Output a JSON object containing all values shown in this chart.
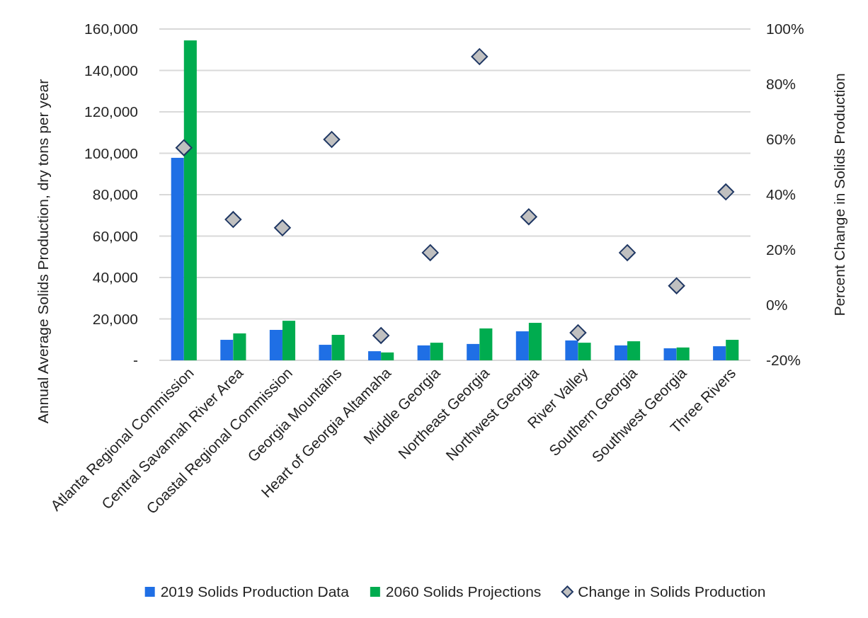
{
  "chart_data": {
    "type": "bar",
    "ylabel": "Annual Average Solids Production, dry tons per year",
    "y2label": "Percent Change in Solids Production",
    "categories": [
      "Atlanta Regional Commission",
      "Central Savannah River Area",
      "Coastal Regional Commission",
      "Georgia Mountains",
      "Heart of Georgia Altamaha",
      "Middle Georgia",
      "Northeast Georgia",
      "Northwest Georgia",
      "River Valley",
      "Southern Georgia",
      "Southwest Georgia",
      "Three Rivers"
    ],
    "series": [
      {
        "name": "2019 Solids Production Data",
        "color": "#1f6fe5",
        "values": [
          97800,
          9900,
          14700,
          7500,
          4400,
          7200,
          7900,
          14000,
          9600,
          7200,
          5800,
          6800
        ]
      },
      {
        "name": "2060 Solids Projections",
        "color": "#00ac4f",
        "values": [
          154500,
          13000,
          19100,
          12300,
          3800,
          8500,
          15400,
          18100,
          8500,
          9200,
          6200,
          9900
        ]
      },
      {
        "name": "Change in Solids Production",
        "type": "scatter",
        "axis": "y2",
        "marker": "diamond",
        "color": "#c0c0c0",
        "values": [
          57,
          31,
          28,
          60,
          -11,
          19,
          90,
          32,
          -10,
          19,
          7,
          41
        ]
      }
    ],
    "ylim": [
      0,
      160000
    ],
    "yticks": [
      {
        "value": 0,
        "label": "-"
      },
      {
        "value": 20000,
        "label": "20,000"
      },
      {
        "value": 40000,
        "label": "40,000"
      },
      {
        "value": 60000,
        "label": "60,000"
      },
      {
        "value": 80000,
        "label": "80,000"
      },
      {
        "value": 100000,
        "label": "100,000"
      },
      {
        "value": 120000,
        "label": "120,000"
      },
      {
        "value": 140000,
        "label": "140,000"
      },
      {
        "value": 160000,
        "label": "160,000"
      }
    ],
    "y2lim": [
      -20,
      100
    ],
    "y2ticks": [
      {
        "value": -20,
        "label": "-20%"
      },
      {
        "value": 0,
        "label": "0%"
      },
      {
        "value": 20,
        "label": "20%"
      },
      {
        "value": 40,
        "label": "40%"
      },
      {
        "value": 60,
        "label": "60%"
      },
      {
        "value": 80,
        "label": "80%"
      },
      {
        "value": 100,
        "label": "100%"
      }
    ],
    "grid": "y",
    "legend": "bottom"
  }
}
